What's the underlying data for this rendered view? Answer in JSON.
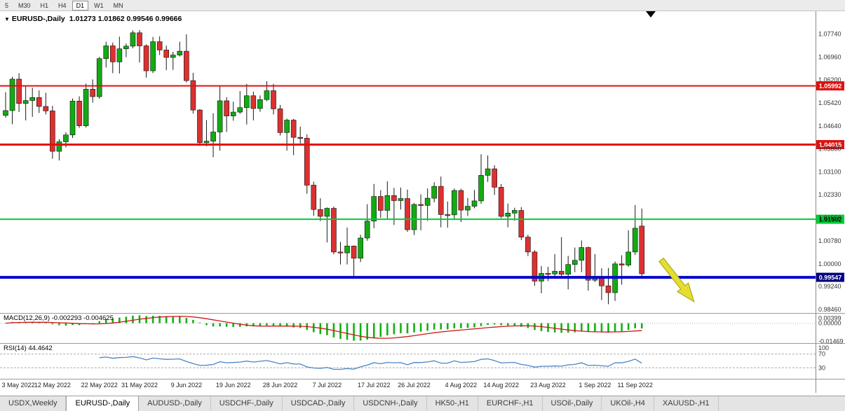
{
  "toolbar": {
    "periods": [
      {
        "label": "5",
        "active": false
      },
      {
        "label": "M30",
        "active": false
      },
      {
        "label": "H1",
        "active": false
      },
      {
        "label": "H4",
        "active": false
      },
      {
        "label": "D1",
        "active": true
      },
      {
        "label": "W1",
        "active": false
      },
      {
        "label": "MN",
        "active": false
      }
    ]
  },
  "chart": {
    "header_arrow": "▼",
    "title": "EURUSD-,Daily",
    "ohlc_text": "1.01273 1.01862 0.99546 0.99666"
  },
  "macd": {
    "label": "MACD(12,26,9) -0.002293 -0.004625"
  },
  "rsi": {
    "label": "RSI(14) 44.4642"
  },
  "colors": {
    "bull": "#12ab12",
    "bear": "#dd3030",
    "wick": "#1a1a1a",
    "macd_hist": "#14b014",
    "macd_signal": "#d01818",
    "rsi_line": "#4b85c4",
    "level_red": "#e01010",
    "level_green": "#00cc33",
    "level_blue": "#0000cc",
    "tag_navy": "#000080",
    "axis_text": "#333333"
  },
  "annotation": {
    "shape": "arrow",
    "direction": "down-right",
    "color": "#e6de2e",
    "stroke": "#a39d17"
  },
  "chart_data": {
    "type": "candlestick",
    "symbol": "EURUSD-",
    "timeframe": "Daily",
    "current_ohlc": {
      "open": 1.01273,
      "high": 1.01862,
      "low": 0.99546,
      "close": 0.99666
    },
    "price_axis_range": [
      0.9837,
      1.0853
    ],
    "price_axis_ticks": [
      "1.07740",
      "1.06960",
      "1.06200",
      "1.05420",
      "1.04640",
      "1.03880",
      "1.03100",
      "1.02330",
      "1.01550",
      "1.00780",
      "1.00000",
      "0.99240",
      "0.98460"
    ],
    "horizontal_lines": [
      {
        "value": 1.05992,
        "label": "1.05992",
        "color": "#e01010",
        "thickness": 2,
        "text_color": "#ffffff"
      },
      {
        "value": 1.04015,
        "label": "1.04015",
        "color": "#e01010",
        "thickness": 3,
        "text_color": "#ffffff"
      },
      {
        "value": 1.01502,
        "label": "1.01502",
        "color": "#00cc33",
        "thickness": 2,
        "text_color": "#000000"
      },
      {
        "value": 0.99547,
        "label": "0.99547",
        "color": "#0000cc",
        "thickness": 4,
        "text_color": "#ffffff",
        "tag_color": "#000080"
      }
    ],
    "indicators": [
      {
        "name": "MACD",
        "params": [
          12,
          26,
          9
        ],
        "values_text": "-0.002293 -0.004625",
        "axis_labels": [
          {
            "text": "0.00399",
            "value": 0.00399
          },
          {
            "text": "0.00000",
            "value": 0
          },
          {
            "text": "-0.01469",
            "value": -0.01469
          }
        ]
      },
      {
        "name": "RSI",
        "params": [
          14
        ],
        "value_text": "44.4642",
        "axis_labels": [
          {
            "text": "100",
            "value": 100
          },
          {
            "text": "70",
            "value": 70
          },
          {
            "text": "30",
            "value": 30
          }
        ],
        "level_lines": [
          70,
          30
        ]
      }
    ],
    "x_labels": [
      {
        "label": "3 May 2022",
        "bar": 0
      },
      {
        "label": "12 May 2022",
        "bar": 7
      },
      {
        "label": "22 May 2022",
        "bar": 14
      },
      {
        "label": "31 May 2022",
        "bar": 20
      },
      {
        "label": "9 Jun 2022",
        "bar": 27
      },
      {
        "label": "19 Jun 2022",
        "bar": 34
      },
      {
        "label": "28 Jun 2022",
        "bar": 41
      },
      {
        "label": "7 Jul 2022",
        "bar": 48
      },
      {
        "label": "17 Jul 2022",
        "bar": 55
      },
      {
        "label": "26 Jul 2022",
        "bar": 61
      },
      {
        "label": "4 Aug 2022",
        "bar": 68
      },
      {
        "label": "14 Aug 2022",
        "bar": 74
      },
      {
        "label": "23 Aug 2022",
        "bar": 81
      },
      {
        "label": "1 Sep 2022",
        "bar": 88
      },
      {
        "label": "11 Sep 2022",
        "bar": 94
      }
    ],
    "ohlc": [
      [
        1.05,
        1.0578,
        1.0492,
        1.0516
      ],
      [
        1.0516,
        1.063,
        1.047,
        1.0622
      ],
      [
        1.0622,
        1.0642,
        1.0511,
        1.054
      ],
      [
        1.054,
        1.0599,
        1.0483,
        1.055
      ],
      [
        1.055,
        1.0593,
        1.0495,
        1.056
      ],
      [
        1.056,
        1.0584,
        1.0508,
        1.053
      ],
      [
        1.053,
        1.0576,
        1.0503,
        1.0515
      ],
      [
        1.0515,
        1.0532,
        1.0354,
        1.0379
      ],
      [
        1.0379,
        1.042,
        1.0348,
        1.0411
      ],
      [
        1.0411,
        1.0443,
        1.0392,
        1.0434
      ],
      [
        1.0434,
        1.0557,
        1.0424,
        1.0548
      ],
      [
        1.0548,
        1.0564,
        1.0458,
        1.0465
      ],
      [
        1.0465,
        1.0607,
        1.0459,
        1.0588
      ],
      [
        1.0588,
        1.0621,
        1.0543,
        1.0563
      ],
      [
        1.0563,
        1.0697,
        1.0556,
        1.0691
      ],
      [
        1.0691,
        1.0748,
        1.0661,
        1.0734
      ],
      [
        1.0734,
        1.0745,
        1.0642,
        1.068
      ],
      [
        1.068,
        1.0765,
        1.0641,
        1.0724
      ],
      [
        1.0724,
        1.0742,
        1.0696,
        1.0733
      ],
      [
        1.0733,
        1.0786,
        1.0726,
        1.0778
      ],
      [
        1.0778,
        1.0787,
        1.0678,
        1.0734
      ],
      [
        1.0734,
        1.0739,
        1.0627,
        1.065
      ],
      [
        1.065,
        1.0764,
        1.0642,
        1.0748
      ],
      [
        1.0748,
        1.0766,
        1.0703,
        1.072
      ],
      [
        1.072,
        1.0735,
        1.0652,
        1.0695
      ],
      [
        1.0695,
        1.0714,
        1.0653,
        1.0703
      ],
      [
        1.0703,
        1.0748,
        1.0698,
        1.0716
      ],
      [
        1.0716,
        1.0773,
        1.0611,
        1.0617
      ],
      [
        1.0617,
        1.0643,
        1.0506,
        1.0518
      ],
      [
        1.0518,
        1.0521,
        1.0397,
        1.0408
      ],
      [
        1.0408,
        1.0484,
        1.0396,
        1.0413
      ],
      [
        1.0413,
        1.0507,
        1.0359,
        1.0444
      ],
      [
        1.0444,
        1.0601,
        1.0381,
        1.0549
      ],
      [
        1.0549,
        1.0561,
        1.0444,
        1.0498
      ],
      [
        1.0498,
        1.0546,
        1.0482,
        1.0511
      ],
      [
        1.0511,
        1.0582,
        1.0505,
        1.0526
      ],
      [
        1.0526,
        1.0606,
        1.0469,
        1.0566
      ],
      [
        1.0566,
        1.058,
        1.0483,
        1.0523
      ],
      [
        1.0523,
        1.0567,
        1.0512,
        1.0553
      ],
      [
        1.0553,
        1.0615,
        1.0548,
        1.0583
      ],
      [
        1.0583,
        1.0606,
        1.0503,
        1.0522
      ],
      [
        1.0522,
        1.0535,
        1.0432,
        1.0442
      ],
      [
        1.0442,
        1.0489,
        1.0381,
        1.0484
      ],
      [
        1.0484,
        1.0488,
        1.0366,
        1.0426
      ],
      [
        1.0426,
        1.0462,
        1.0406,
        1.0423
      ],
      [
        1.0423,
        1.0436,
        1.0236,
        1.0265
      ],
      [
        1.0265,
        1.0277,
        1.0162,
        1.0183
      ],
      [
        1.0183,
        1.0221,
        1.0144,
        1.016
      ],
      [
        1.016,
        1.019,
        1.0072,
        1.0187
      ],
      [
        1.0187,
        1.0193,
        1.0032,
        1.004
      ],
      [
        1.004,
        1.0074,
        0.9998,
        1.0037
      ],
      [
        1.0037,
        1.0122,
        0.9998,
        1.006
      ],
      [
        1.006,
        1.0062,
        0.9952,
        1.0019
      ],
      [
        1.0019,
        1.0098,
        1.0006,
        1.0087
      ],
      [
        1.0087,
        1.0201,
        1.0078,
        1.0144
      ],
      [
        1.0144,
        1.0269,
        1.012,
        1.0227
      ],
      [
        1.0227,
        1.0248,
        1.0155,
        1.018
      ],
      [
        1.018,
        1.0278,
        1.0153,
        1.023
      ],
      [
        1.023,
        1.0256,
        1.0131,
        1.0213
      ],
      [
        1.0213,
        1.0257,
        1.0183,
        1.022
      ],
      [
        1.022,
        1.025,
        1.0108,
        1.0115
      ],
      [
        1.0115,
        1.0205,
        1.0097,
        1.02
      ],
      [
        1.02,
        1.0234,
        1.0113,
        1.0197
      ],
      [
        1.0197,
        1.0254,
        1.0145,
        1.0221
      ],
      [
        1.0221,
        1.0275,
        1.0207,
        1.0261
      ],
      [
        1.0261,
        1.0294,
        1.0123,
        1.0166
      ],
      [
        1.0166,
        1.021,
        1.0122,
        1.0165
      ],
      [
        1.0165,
        1.0254,
        1.0151,
        1.0247
      ],
      [
        1.0247,
        1.0253,
        1.0141,
        1.0181
      ],
      [
        1.0181,
        1.0222,
        1.0161,
        1.0194
      ],
      [
        1.0194,
        1.0249,
        1.0187,
        1.0212
      ],
      [
        1.0212,
        1.0369,
        1.0202,
        1.0298
      ],
      [
        1.0298,
        1.0365,
        1.0276,
        1.032
      ],
      [
        1.032,
        1.0332,
        1.0232,
        1.0258
      ],
      [
        1.0258,
        1.0269,
        1.0154,
        1.016
      ],
      [
        1.016,
        1.0203,
        1.0123,
        1.0171
      ],
      [
        1.0171,
        1.0189,
        1.0145,
        1.018
      ],
      [
        1.018,
        1.0191,
        1.008,
        1.009
      ],
      [
        1.009,
        1.0098,
        1.0026,
        1.004
      ],
      [
        1.004,
        1.0046,
        0.9926,
        0.9942
      ],
      [
        0.9942,
        0.9993,
        0.9901,
        0.9968
      ],
      [
        0.9968,
        0.999,
        0.9942,
        0.9966
      ],
      [
        0.9966,
        1.0033,
        0.9956,
        0.9975
      ],
      [
        0.9975,
        1.009,
        0.9958,
        0.9965
      ],
      [
        0.9965,
        1.0027,
        0.9914,
        0.9998
      ],
      [
        0.9998,
        1.0055,
        0.9972,
        1.0012
      ],
      [
        1.0012,
        1.0079,
        0.9972,
        1.0055
      ],
      [
        1.0055,
        1.0058,
        0.991,
        0.9945
      ],
      [
        0.9945,
        1.0033,
        0.9939,
        0.9952
      ],
      [
        0.9952,
        0.9985,
        0.9878,
        0.9926
      ],
      [
        0.9926,
        0.9986,
        0.9864,
        0.9903
      ],
      [
        0.9903,
        1.0008,
        0.9875,
        1.0
      ],
      [
        1.0,
        1.0029,
        0.993,
        0.9996
      ],
      [
        0.9996,
        1.0113,
        0.999,
        1.004
      ],
      [
        1.004,
        1.0198,
        1.003,
        1.012
      ],
      [
        1.01273,
        1.01862,
        0.99546,
        0.99666
      ]
    ]
  },
  "tabs": [
    {
      "label": "USDX,Weekly",
      "active": false
    },
    {
      "label": "EURUSD-,Daily",
      "active": true
    },
    {
      "label": "AUDUSD-,Daily",
      "active": false
    },
    {
      "label": "USDCHF-,Daily",
      "active": false
    },
    {
      "label": "USDCAD-,Daily",
      "active": false
    },
    {
      "label": "USDCNH-,Daily",
      "active": false
    },
    {
      "label": "HK50-,H1",
      "active": false
    },
    {
      "label": "EURCHF-,H1",
      "active": false
    },
    {
      "label": "USOil-,Daily",
      "active": false
    },
    {
      "label": "UKOil-,H4",
      "active": false
    },
    {
      "label": "XAUUSD-,H1",
      "active": false
    }
  ]
}
